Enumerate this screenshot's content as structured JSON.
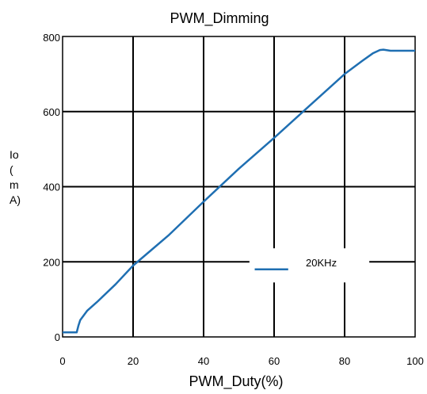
{
  "chart_data": {
    "type": "line",
    "title": "PWM_Dimming",
    "xlabel": "PWM_Duty(%)",
    "ylabel_lines": [
      "Io",
      "(",
      "m",
      "A)"
    ],
    "xlim": [
      0,
      100
    ],
    "ylim": [
      0,
      800
    ],
    "x_ticks": [
      0,
      20,
      40,
      60,
      80,
      100
    ],
    "x_tick_labels": [
      "0",
      "20",
      "40",
      "60",
      "80",
      "100"
    ],
    "y_ticks": [
      0,
      200,
      400,
      600,
      800
    ],
    "y_tick_labels": [
      "0",
      "200",
      "400",
      "600",
      "800"
    ],
    "grid": true,
    "legend_position": "center-right",
    "series": [
      {
        "name": "20KHz",
        "color": "#1f6fb2",
        "x": [
          0,
          4,
          4.5,
          5,
          7,
          10,
          15,
          20,
          25,
          30,
          40,
          50,
          60,
          70,
          80,
          85,
          88,
          90,
          91,
          93,
          95,
          100
        ],
        "y": [
          12,
          12,
          30,
          45,
          70,
          95,
          140,
          190,
          230,
          270,
          360,
          448,
          530,
          615,
          700,
          735,
          755,
          764,
          765,
          762,
          762,
          762
        ]
      }
    ]
  }
}
